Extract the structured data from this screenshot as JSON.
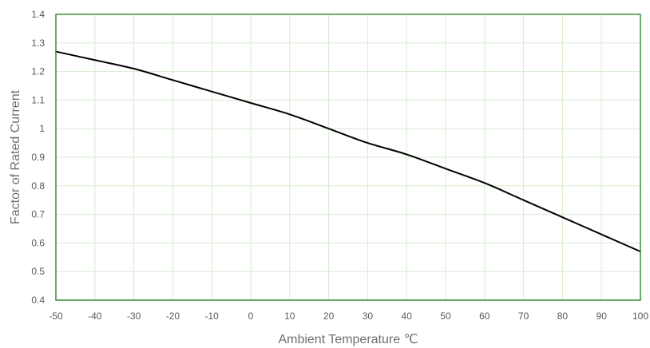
{
  "chart_data": {
    "type": "line",
    "title": "",
    "xlabel": "Ambient Temperature ℃",
    "ylabel": "Factor of Rated Current",
    "xlim": [
      -50,
      100
    ],
    "ylim": [
      0.4,
      1.4
    ],
    "x_ticks": [
      -50,
      -40,
      -30,
      -20,
      -10,
      0,
      10,
      20,
      30,
      40,
      50,
      60,
      70,
      80,
      90,
      100
    ],
    "y_ticks": [
      0.4,
      0.5,
      0.6,
      0.7,
      0.8,
      0.9,
      1.0,
      1.1,
      1.2,
      1.3,
      1.4
    ],
    "x_tick_labels": [
      "-50",
      "-40",
      "-30",
      "-20",
      "-10",
      "0",
      "10",
      "20",
      "30",
      "40",
      "50",
      "60",
      "70",
      "80",
      "90",
      "100"
    ],
    "y_tick_labels": [
      "0.4",
      "0.5",
      "0.6",
      "0.7",
      "0.8",
      "0.9",
      "1",
      "1.1",
      "1.2",
      "1.3",
      "1.4"
    ],
    "grid": true,
    "legend": "none",
    "series": [
      {
        "x": [
          -50,
          -40,
          -30,
          -20,
          -10,
          0,
          10,
          20,
          30,
          40,
          50,
          60,
          70,
          80,
          90,
          100
        ],
        "y": [
          1.27,
          1.24,
          1.21,
          1.17,
          1.13,
          1.09,
          1.05,
          1.0,
          0.95,
          0.91,
          0.86,
          0.81,
          0.75,
          0.69,
          0.63,
          0.57
        ],
        "color": "#000000"
      }
    ],
    "colors": {
      "grid": "#d6ecd0",
      "frame": "#3a8f3a",
      "line": "#000000",
      "tick_text": "#595959",
      "axis_title": "#6f6f6f"
    }
  }
}
